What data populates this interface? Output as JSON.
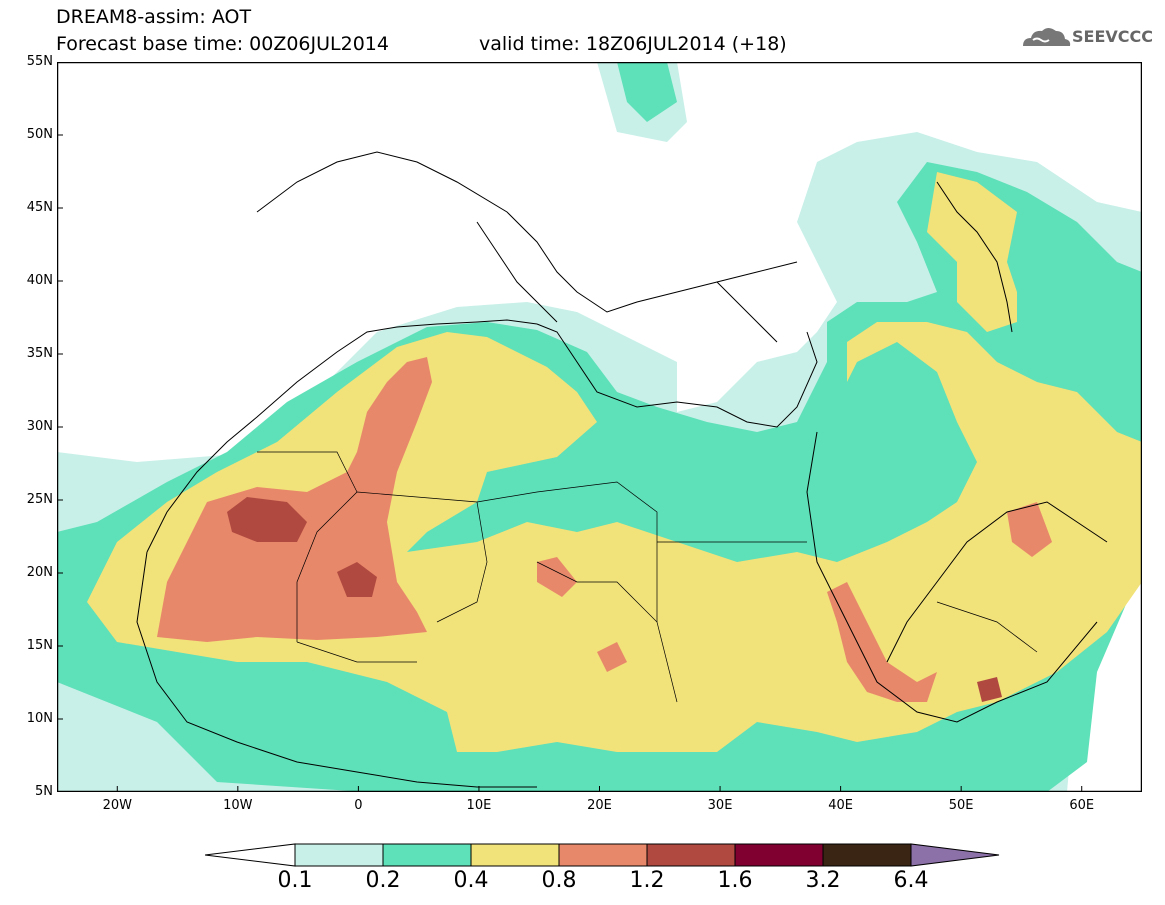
{
  "header": {
    "title": "DREAM8-assim: AOT",
    "base_time": "Forecast base time: 00Z06JUL2014",
    "valid_time": "valid time: 18Z06JUL2014 (+18)",
    "logo_text": "SEEVCCC"
  },
  "axes": {
    "y_labels": [
      "55N",
      "50N",
      "45N",
      "40N",
      "35N",
      "30N",
      "25N",
      "20N",
      "15N",
      "10N",
      "5N"
    ],
    "x_labels": [
      "20W",
      "10W",
      "0",
      "10E",
      "20E",
      "30E",
      "40E",
      "50E",
      "60E"
    ],
    "lon_range": [
      -25,
      65
    ],
    "lat_range": [
      5,
      55
    ]
  },
  "colorbar": {
    "labels": [
      "0.1",
      "0.2",
      "0.4",
      "0.8",
      "1.2",
      "1.6",
      "3.2",
      "6.4"
    ],
    "colors": [
      "#c8f0e8",
      "#5ee0b8",
      "#f2e27a",
      "#e8886a",
      "#b04a40",
      "#800030",
      "#3a2414",
      "#8c70a8"
    ]
  },
  "colors": {
    "aot_0_1": "#c8f0e8",
    "aot_0_2": "#5ee0b8",
    "aot_0_4": "#f2e27a",
    "aot_0_8": "#e8886a",
    "aot_1_2": "#b04a40"
  }
}
